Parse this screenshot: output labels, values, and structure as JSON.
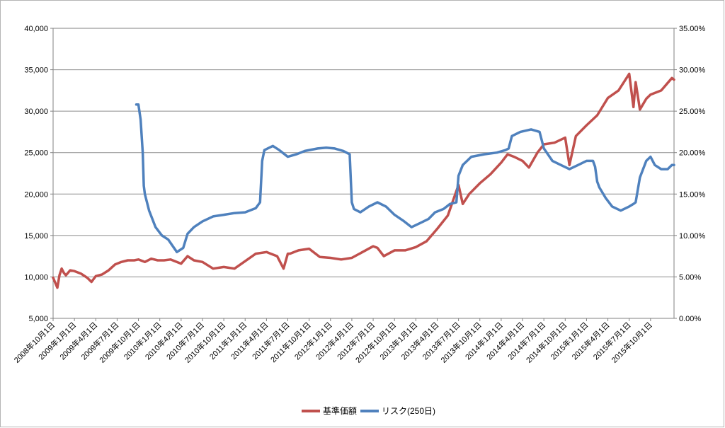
{
  "chart_data": {
    "type": "line",
    "title": "",
    "xlabel": "",
    "ylabel": "",
    "y_left": {
      "min": 5000,
      "max": 40000,
      "step": 5000,
      "tick_labels": [
        "5,000",
        "10,000",
        "15,000",
        "20,000",
        "25,000",
        "30,000",
        "35,000",
        "40,000"
      ]
    },
    "y_right": {
      "min": 0,
      "max": 35,
      "step": 5,
      "tick_labels": [
        "0.00%",
        "5.00%",
        "10.00%",
        "15.00%",
        "20.00%",
        "25.00%",
        "30.00%",
        "35.00%"
      ]
    },
    "x_tick_labels": [
      "2008年10月1日",
      "2009年1月1日",
      "2009年4月1日",
      "2009年7月1日",
      "2009年10月1日",
      "2010年1月1日",
      "2010年4月1日",
      "2010年7月1日",
      "2010年10月1日",
      "2011年1月1日",
      "2011年4月1日",
      "2011年7月1日",
      "2011年10月1日",
      "2012年1月1日",
      "2012年4月1日",
      "2012年7月1日",
      "2012年10月1日",
      "2013年1月1日",
      "2013年4月1日",
      "2013年7月1日",
      "2013年10月1日",
      "2014年1月1日",
      "2014年4月1日",
      "2014年7月1日",
      "2014年10月1日",
      "2015年1月1日",
      "2015年4月1日",
      "2015年7月1日",
      "2015年10月1日"
    ],
    "x_range": [
      0,
      29.1
    ],
    "grid": true,
    "legend_position": "bottom",
    "series": [
      {
        "name": "基準価額",
        "axis": "left",
        "color": "#c0504d",
        "x": [
          0,
          0.1,
          0.2,
          0.3,
          0.4,
          0.5,
          0.6,
          0.8,
          1.0,
          1.3,
          1.6,
          1.8,
          2.0,
          2.3,
          2.6,
          2.9,
          3.2,
          3.5,
          3.8,
          4.0,
          4.3,
          4.6,
          4.9,
          5.2,
          5.5,
          6.0,
          6.3,
          6.6,
          7.0,
          7.5,
          8.0,
          8.5,
          9.0,
          9.5,
          10.0,
          10.5,
          10.8,
          11.0,
          11.1,
          11.5,
          12.0,
          12.5,
          13.0,
          13.5,
          14.0,
          14.5,
          15.0,
          15.2,
          15.5,
          16.0,
          16.5,
          17.0,
          17.5,
          18.0,
          18.5,
          19.0,
          19.2,
          19.5,
          20.0,
          20.5,
          21.0,
          21.3,
          21.6,
          22.0,
          22.3,
          22.7,
          23.0,
          23.5,
          24.0,
          24.2,
          24.5,
          25.0,
          25.5,
          26.0,
          26.5,
          27.0,
          27.2,
          27.3,
          27.5,
          27.8,
          28.0,
          28.5,
          29.0,
          29.1
        ],
        "values": [
          9900,
          9300,
          8700,
          10200,
          11000,
          10500,
          10200,
          10800,
          10700,
          10400,
          9900,
          9400,
          10100,
          10300,
          10800,
          11500,
          11800,
          12000,
          12000,
          12100,
          11800,
          12200,
          12000,
          12000,
          12100,
          11600,
          12500,
          12000,
          11800,
          11000,
          11200,
          11000,
          11900,
          12800,
          13000,
          12500,
          11000,
          12800,
          12800,
          13200,
          13400,
          12400,
          12300,
          12100,
          12300,
          13000,
          13700,
          13500,
          12500,
          13200,
          13200,
          13600,
          14300,
          15800,
          17400,
          21100,
          18800,
          20000,
          21300,
          22400,
          23800,
          24800,
          24500,
          24000,
          23200,
          25000,
          26000,
          26200,
          26800,
          23500,
          27000,
          28300,
          29500,
          31600,
          32500,
          34500,
          30500,
          33500,
          30200,
          31500,
          32000,
          32500,
          34000,
          33800
        ]
      },
      {
        "name": "リスク(250日)",
        "axis": "right",
        "color": "#4f81bd",
        "x": [
          3.9,
          4.0,
          4.1,
          4.2,
          4.25,
          4.3,
          4.5,
          4.8,
          5.1,
          5.4,
          5.8,
          6.1,
          6.3,
          6.6,
          7.0,
          7.5,
          8.0,
          8.5,
          9.0,
          9.5,
          9.7,
          9.8,
          9.9,
          10.3,
          10.6,
          11.0,
          11.4,
          11.8,
          12.4,
          12.8,
          13.2,
          13.6,
          13.9,
          14.0,
          14.1,
          14.4,
          14.8,
          15.2,
          15.6,
          16.0,
          16.4,
          16.8,
          17.2,
          17.6,
          17.9,
          18.3,
          18.6,
          18.9,
          19.0,
          19.2,
          19.6,
          20.2,
          20.8,
          21.2,
          21.35,
          21.5,
          21.9,
          22.4,
          22.8,
          23.0,
          23.4,
          23.8,
          24.2,
          24.6,
          25.0,
          25.3,
          25.4,
          25.5,
          25.6,
          25.9,
          26.2,
          26.6,
          27.0,
          27.2,
          27.3,
          27.5,
          27.8,
          28.0,
          28.2,
          28.5,
          28.8,
          29.0,
          29.1
        ],
        "values": [
          25.8,
          25.8,
          24.0,
          20.0,
          16.0,
          15.0,
          13.0,
          11.0,
          10.0,
          9.5,
          8.0,
          8.5,
          10.2,
          11.0,
          11.7,
          12.3,
          12.5,
          12.7,
          12.8,
          13.3,
          14.0,
          19.0,
          20.3,
          20.8,
          20.3,
          19.5,
          19.8,
          20.2,
          20.5,
          20.6,
          20.5,
          20.2,
          19.8,
          14.0,
          13.2,
          12.8,
          13.5,
          14.0,
          13.5,
          12.5,
          11.8,
          11.0,
          11.5,
          12.0,
          12.8,
          13.2,
          13.8,
          14.0,
          17.2,
          18.5,
          19.5,
          19.8,
          20.0,
          20.3,
          20.5,
          22.0,
          22.5,
          22.8,
          22.5,
          20.5,
          19.0,
          18.5,
          18.0,
          18.5,
          19.0,
          19.0,
          18.3,
          16.5,
          15.8,
          14.5,
          13.5,
          13.0,
          13.5,
          13.8,
          14.0,
          17.0,
          19.0,
          19.5,
          18.5,
          18.0,
          18.0,
          18.5,
          18.5
        ]
      }
    ]
  }
}
